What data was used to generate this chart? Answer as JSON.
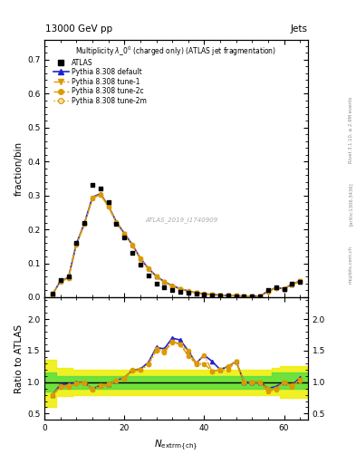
{
  "title_top_left": "13000 GeV pp",
  "title_top_right": "Jets",
  "main_title": "Multiplicity $\\lambda\\_0^0$ (charged only) (ATLAS jet fragmentation)",
  "watermark": "ATLAS_2019_I1740909",
  "ylabel_main": "fraction/bin",
  "ylabel_ratio": "Ratio to ATLAS",
  "xlabel": "$N_{\\mathrm{extrm\\{ch\\}}}$",
  "right_label1": "Rivet 3.1.10, ≥ 2.9M events",
  "right_label2": "[arXiv:1306.3436]",
  "right_label3": "mcplots.cern.ch",
  "x_data": [
    2,
    4,
    6,
    8,
    10,
    12,
    14,
    16,
    18,
    20,
    22,
    24,
    26,
    28,
    30,
    32,
    34,
    36,
    38,
    40,
    42,
    44,
    46,
    48,
    50,
    52,
    54,
    56,
    58,
    60,
    62,
    64
  ],
  "atlas_y": [
    0.01,
    0.05,
    0.06,
    0.16,
    0.22,
    0.33,
    0.32,
    0.28,
    0.215,
    0.175,
    0.13,
    0.095,
    0.065,
    0.04,
    0.03,
    0.02,
    0.015,
    0.012,
    0.01,
    0.007,
    0.006,
    0.005,
    0.004,
    0.003,
    0.003,
    0.003,
    0.003,
    0.02,
    0.03,
    0.025,
    0.04,
    0.045
  ],
  "pythia_default_y": [
    0.008,
    0.048,
    0.058,
    0.158,
    0.218,
    0.295,
    0.305,
    0.27,
    0.222,
    0.188,
    0.155,
    0.115,
    0.085,
    0.062,
    0.046,
    0.034,
    0.025,
    0.018,
    0.013,
    0.01,
    0.008,
    0.006,
    0.005,
    0.004,
    0.003,
    0.003,
    0.003,
    0.018,
    0.028,
    0.025,
    0.038,
    0.048
  ],
  "pythia_tune1_y": [
    0.008,
    0.046,
    0.056,
    0.155,
    0.215,
    0.292,
    0.302,
    0.268,
    0.22,
    0.186,
    0.153,
    0.113,
    0.083,
    0.06,
    0.044,
    0.033,
    0.024,
    0.017,
    0.013,
    0.009,
    0.007,
    0.006,
    0.005,
    0.004,
    0.003,
    0.003,
    0.003,
    0.017,
    0.027,
    0.025,
    0.037,
    0.047
  ],
  "pythia_tune2c_y": [
    0.008,
    0.047,
    0.057,
    0.157,
    0.217,
    0.293,
    0.303,
    0.269,
    0.221,
    0.187,
    0.154,
    0.114,
    0.084,
    0.061,
    0.045,
    0.033,
    0.024,
    0.018,
    0.013,
    0.01,
    0.007,
    0.006,
    0.005,
    0.004,
    0.003,
    0.003,
    0.003,
    0.018,
    0.027,
    0.025,
    0.038,
    0.047
  ],
  "pythia_tune2m_y": [
    0.008,
    0.046,
    0.056,
    0.156,
    0.216,
    0.292,
    0.302,
    0.268,
    0.22,
    0.186,
    0.153,
    0.113,
    0.083,
    0.06,
    0.044,
    0.033,
    0.024,
    0.017,
    0.013,
    0.009,
    0.007,
    0.006,
    0.005,
    0.004,
    0.003,
    0.003,
    0.003,
    0.017,
    0.027,
    0.024,
    0.037,
    0.046
  ],
  "ratio_default": [
    0.8,
    0.96,
    0.97,
    0.99,
    0.99,
    0.89,
    0.95,
    0.96,
    1.03,
    1.07,
    1.19,
    1.21,
    1.31,
    1.55,
    1.53,
    1.7,
    1.67,
    1.5,
    1.3,
    1.43,
    1.33,
    1.2,
    1.25,
    1.33,
    1.0,
    1.0,
    1.0,
    0.9,
    0.93,
    1.0,
    0.95,
    1.07
  ],
  "ratio_tune1": [
    0.8,
    0.92,
    0.93,
    0.97,
    0.98,
    0.88,
    0.94,
    0.96,
    1.02,
    1.06,
    1.18,
    1.19,
    1.28,
    1.5,
    1.47,
    1.65,
    1.6,
    1.42,
    1.3,
    1.29,
    1.17,
    1.2,
    1.2,
    1.33,
    1.0,
    1.0,
    1.0,
    0.85,
    0.9,
    1.0,
    0.93,
    1.04
  ],
  "ratio_tune2c": [
    0.8,
    0.94,
    0.95,
    0.98,
    0.99,
    0.89,
    0.95,
    0.96,
    1.03,
    1.07,
    1.19,
    1.2,
    1.29,
    1.53,
    1.5,
    1.65,
    1.6,
    1.5,
    1.3,
    1.43,
    1.17,
    1.2,
    1.25,
    1.33,
    1.0,
    1.0,
    1.0,
    0.9,
    0.9,
    1.0,
    0.95,
    1.04
  ],
  "ratio_tune2m": [
    0.8,
    0.92,
    0.93,
    0.98,
    0.98,
    0.88,
    0.94,
    0.96,
    1.02,
    1.06,
    1.18,
    1.19,
    1.28,
    1.5,
    1.47,
    1.63,
    1.6,
    1.42,
    1.28,
    1.29,
    1.17,
    1.2,
    1.2,
    1.33,
    1.0,
    1.0,
    1.0,
    0.85,
    0.88,
    1.0,
    0.92,
    1.03
  ],
  "ylim_main": [
    0.0,
    0.76
  ],
  "ylim_ratio": [
    0.4,
    2.35
  ],
  "xlim": [
    0,
    66
  ],
  "yticks_main": [
    0.0,
    0.1,
    0.2,
    0.3,
    0.4,
    0.5,
    0.6,
    0.7
  ],
  "yticks_ratio": [
    0.5,
    1.0,
    1.5,
    2.0
  ],
  "xticks": [
    0,
    20,
    40,
    60
  ],
  "color_atlas": "#000000",
  "color_default": "#2222cc",
  "color_tune1": "#dd9900",
  "color_tune2c": "#dd9900",
  "color_tune2m": "#dd9900",
  "color_green": "#44dd44",
  "color_yellow": "#eeee00",
  "green_band_x": [
    0,
    2,
    4,
    6,
    8,
    10,
    12,
    14,
    16,
    18,
    20,
    22,
    24,
    26,
    28,
    30,
    32,
    34,
    36,
    38,
    40,
    42,
    44,
    46,
    48,
    50,
    52,
    54,
    56,
    58,
    60,
    62,
    64,
    66
  ],
  "green_lo": [
    0.85,
    0.85,
    0.9,
    0.9,
    0.9,
    0.9,
    0.9,
    0.9,
    0.9,
    0.9,
    0.9,
    0.9,
    0.9,
    0.9,
    0.9,
    0.9,
    0.9,
    0.9,
    0.9,
    0.9,
    0.9,
    0.9,
    0.9,
    0.9,
    0.9,
    0.9,
    0.9,
    0.9,
    0.9,
    0.9,
    0.9,
    0.9,
    0.9,
    0.9
  ],
  "green_hi": [
    1.15,
    1.15,
    1.1,
    1.1,
    1.1,
    1.1,
    1.1,
    1.1,
    1.1,
    1.1,
    1.1,
    1.1,
    1.1,
    1.1,
    1.1,
    1.1,
    1.1,
    1.1,
    1.1,
    1.1,
    1.1,
    1.1,
    1.1,
    1.1,
    1.1,
    1.1,
    1.1,
    1.1,
    1.1,
    1.15,
    1.15,
    1.15,
    1.15,
    1.15
  ],
  "yellow_lo": [
    0.6,
    0.6,
    0.78,
    0.78,
    0.8,
    0.8,
    0.8,
    0.8,
    0.8,
    0.8,
    0.8,
    0.8,
    0.8,
    0.8,
    0.8,
    0.8,
    0.8,
    0.8,
    0.8,
    0.8,
    0.8,
    0.8,
    0.8,
    0.8,
    0.8,
    0.8,
    0.8,
    0.8,
    0.8,
    0.8,
    0.75,
    0.75,
    0.75,
    0.75
  ],
  "yellow_hi": [
    1.35,
    1.35,
    1.22,
    1.22,
    1.2,
    1.2,
    1.2,
    1.2,
    1.2,
    1.2,
    1.2,
    1.2,
    1.2,
    1.2,
    1.2,
    1.2,
    1.2,
    1.2,
    1.2,
    1.2,
    1.2,
    1.2,
    1.2,
    1.2,
    1.2,
    1.2,
    1.2,
    1.2,
    1.2,
    1.22,
    1.25,
    1.25,
    1.25,
    1.25
  ]
}
